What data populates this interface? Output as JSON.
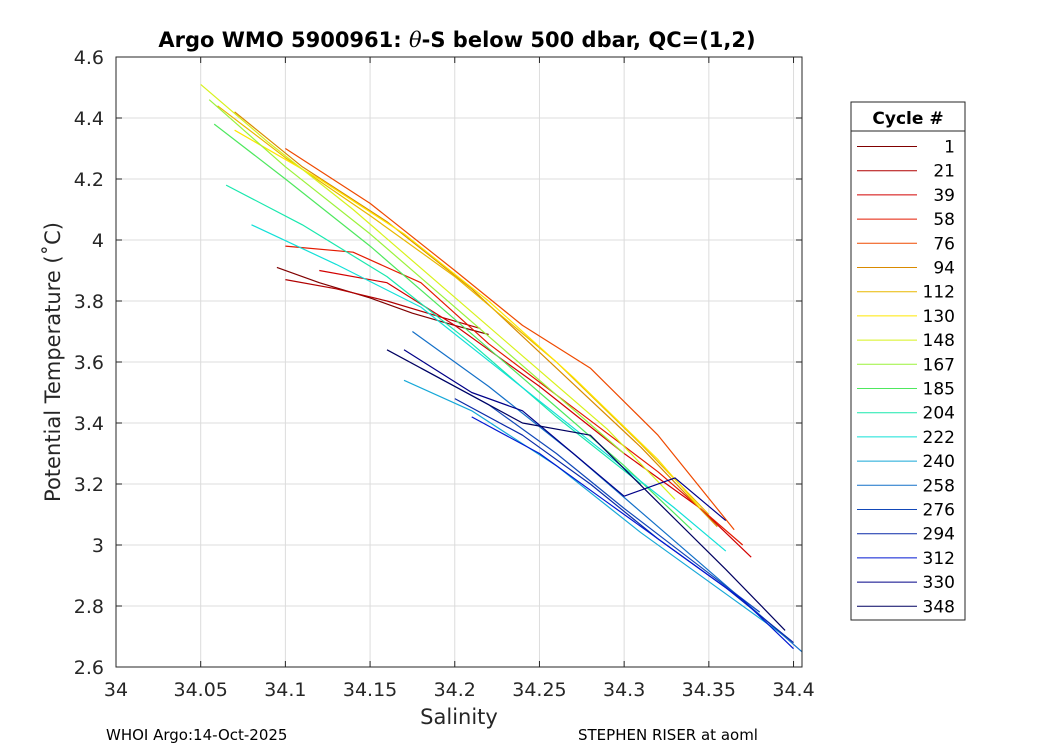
{
  "chart_data": {
    "type": "line",
    "title_prefix": "Argo WMO 5900961: ",
    "title_theta": "θ",
    "title_suffix": "-S below 500 dbar,  QC=(1,2)",
    "xlabel": "Salinity",
    "ylabel": "Potential Temperature (˚C)",
    "xlim": [
      34.0,
      34.405
    ],
    "ylim": [
      2.6,
      4.6
    ],
    "x_ticks": [
      34,
      34.05,
      34.1,
      34.15,
      34.2,
      34.25,
      34.3,
      34.35,
      34.4
    ],
    "x_tick_labels": [
      "34",
      "34.05",
      "34.1",
      "34.15",
      "34.2",
      "34.25",
      "34.3",
      "34.35",
      "34.4"
    ],
    "y_ticks": [
      2.6,
      2.8,
      3,
      3.2,
      3.4,
      3.6,
      3.8,
      4,
      4.2,
      4.4,
      4.6
    ],
    "y_tick_labels": [
      "2.6",
      "2.8",
      "3",
      "3.2",
      "3.4",
      "3.6",
      "3.8",
      "4",
      "4.2",
      "4.4",
      "4.6"
    ],
    "grid": true,
    "legend": {
      "title": "Cycle #",
      "placement": "outside-right",
      "entries": [
        {
          "label": "1",
          "color": "#800000"
        },
        {
          "label": "21",
          "color": "#b00000"
        },
        {
          "label": "39",
          "color": "#d20000"
        },
        {
          "label": "58",
          "color": "#e41a00"
        },
        {
          "label": "76",
          "color": "#ef4a00"
        },
        {
          "label": "94",
          "color": "#d98a00"
        },
        {
          "label": "112",
          "color": "#e9b800"
        },
        {
          "label": "130",
          "color": "#ffe600"
        },
        {
          "label": "148",
          "color": "#d8f21c"
        },
        {
          "label": "167",
          "color": "#9cf23a"
        },
        {
          "label": "185",
          "color": "#4ee85e"
        },
        {
          "label": "204",
          "color": "#19e8ae"
        },
        {
          "label": "222",
          "color": "#12e0d8"
        },
        {
          "label": "240",
          "color": "#16a8d8"
        },
        {
          "label": "258",
          "color": "#1470c8"
        },
        {
          "label": "276",
          "color": "#1248b8"
        },
        {
          "label": "294",
          "color": "#0a2aa8"
        },
        {
          "label": "312",
          "color": "#0018d2"
        },
        {
          "label": "330",
          "color": "#000088"
        },
        {
          "label": "348",
          "color": "#000060"
        }
      ]
    },
    "series": [
      {
        "name": "1",
        "color": "#800000",
        "x": [
          34.095,
          34.12,
          34.15,
          34.175,
          34.2,
          34.22
        ],
        "y": [
          3.91,
          3.86,
          3.81,
          3.76,
          3.72,
          3.69
        ]
      },
      {
        "name": "21",
        "color": "#b00000",
        "x": [
          34.1,
          34.13,
          34.16,
          34.19,
          34.215
        ],
        "y": [
          3.87,
          3.84,
          3.8,
          3.75,
          3.71
        ]
      },
      {
        "name": "39",
        "color": "#d20000",
        "x": [
          34.12,
          34.16,
          34.2,
          34.25,
          34.3,
          34.345,
          34.375
        ],
        "y": [
          3.9,
          3.86,
          3.72,
          3.52,
          3.3,
          3.12,
          2.96
        ]
      },
      {
        "name": "58",
        "color": "#e41a00",
        "x": [
          34.1,
          34.14,
          34.18,
          34.22,
          34.27,
          34.32,
          34.37
        ],
        "y": [
          3.98,
          3.96,
          3.86,
          3.66,
          3.45,
          3.24,
          3.0
        ]
      },
      {
        "name": "76",
        "color": "#ef4a00",
        "x": [
          34.1,
          34.15,
          34.2,
          34.24,
          34.28,
          34.32,
          34.365
        ],
        "y": [
          4.3,
          4.12,
          3.9,
          3.72,
          3.58,
          3.36,
          3.05
        ]
      },
      {
        "name": "94",
        "color": "#d98a00",
        "x": [
          34.07,
          34.11,
          34.16,
          34.21,
          34.26,
          34.31,
          34.355
        ],
        "y": [
          4.42,
          4.24,
          4.06,
          3.84,
          3.58,
          3.32,
          3.06
        ]
      },
      {
        "name": "112",
        "color": "#e9b800",
        "x": [
          34.06,
          34.1,
          34.15,
          34.2,
          34.26,
          34.31,
          34.35
        ],
        "y": [
          4.44,
          4.27,
          4.08,
          3.88,
          3.6,
          3.33,
          3.1
        ]
      },
      {
        "name": "130",
        "color": "#ffe600",
        "x": [
          34.07,
          34.12,
          34.17,
          34.22,
          34.27,
          34.32,
          34.345
        ],
        "y": [
          4.36,
          4.2,
          4.02,
          3.8,
          3.55,
          3.28,
          3.12
        ]
      },
      {
        "name": "148",
        "color": "#d8f21c",
        "x": [
          34.05,
          34.09,
          34.14,
          34.19,
          34.24,
          34.29,
          34.33
        ],
        "y": [
          4.51,
          4.32,
          4.1,
          3.86,
          3.62,
          3.38,
          3.15
        ]
      },
      {
        "name": "167",
        "color": "#9cf23a",
        "x": [
          34.055,
          34.1,
          34.15,
          34.2,
          34.25,
          34.3
        ],
        "y": [
          4.46,
          4.24,
          4.02,
          3.78,
          3.54,
          3.3
        ]
      },
      {
        "name": "185",
        "color": "#4ee85e",
        "x": [
          34.058,
          34.1,
          34.15,
          34.2,
          34.25,
          34.3,
          34.34
        ],
        "y": [
          4.38,
          4.2,
          3.98,
          3.74,
          3.5,
          3.26,
          3.05
        ]
      },
      {
        "name": "204",
        "color": "#19e8ae",
        "x": [
          34.065,
          34.11,
          34.16,
          34.21,
          34.26,
          34.31
        ],
        "y": [
          4.18,
          4.05,
          3.88,
          3.66,
          3.42,
          3.2
        ]
      },
      {
        "name": "222",
        "color": "#12e0d8",
        "x": [
          34.08,
          34.13,
          34.18,
          34.23,
          34.28,
          34.33,
          34.36
        ],
        "y": [
          4.05,
          3.92,
          3.78,
          3.56,
          3.34,
          3.12,
          2.98
        ]
      },
      {
        "name": "240",
        "color": "#16a8d8",
        "x": [
          34.17,
          34.21,
          34.26,
          34.31,
          34.36,
          34.395
        ],
        "y": [
          3.54,
          3.44,
          3.26,
          3.04,
          2.84,
          2.7
        ]
      },
      {
        "name": "258",
        "color": "#1470c8",
        "x": [
          34.175,
          34.22,
          34.27,
          34.32,
          34.37,
          34.405
        ],
        "y": [
          3.7,
          3.52,
          3.3,
          3.06,
          2.82,
          2.65
        ]
      },
      {
        "name": "276",
        "color": "#1248b8",
        "x": [
          34.18,
          34.22,
          34.26,
          34.3,
          34.34,
          34.38
        ],
        "y": [
          3.58,
          3.46,
          3.3,
          3.12,
          2.95,
          2.78
        ]
      },
      {
        "name": "294",
        "color": "#0a2aa8",
        "x": [
          34.2,
          34.24,
          34.28,
          34.32,
          34.36,
          34.4
        ],
        "y": [
          3.48,
          3.36,
          3.2,
          3.02,
          2.86,
          2.68
        ]
      },
      {
        "name": "312",
        "color": "#0018d2",
        "x": [
          34.21,
          34.25,
          34.29,
          34.33,
          34.37,
          34.4
        ],
        "y": [
          3.42,
          3.3,
          3.14,
          2.98,
          2.82,
          2.66
        ]
      },
      {
        "name": "330",
        "color": "#000088",
        "x": [
          34.17,
          34.21,
          34.24,
          34.27,
          34.3,
          34.33,
          34.36
        ],
        "y": [
          3.64,
          3.5,
          3.44,
          3.3,
          3.16,
          3.22,
          3.08
        ]
      },
      {
        "name": "348",
        "color": "#000060",
        "x": [
          34.16,
          34.2,
          34.24,
          34.28,
          34.32,
          34.36,
          34.395
        ],
        "y": [
          3.64,
          3.52,
          3.4,
          3.36,
          3.14,
          2.92,
          2.72
        ]
      }
    ]
  },
  "footer": {
    "left": "WHOI Argo:14-Oct-2025",
    "right": "STEPHEN RISER at aoml"
  }
}
